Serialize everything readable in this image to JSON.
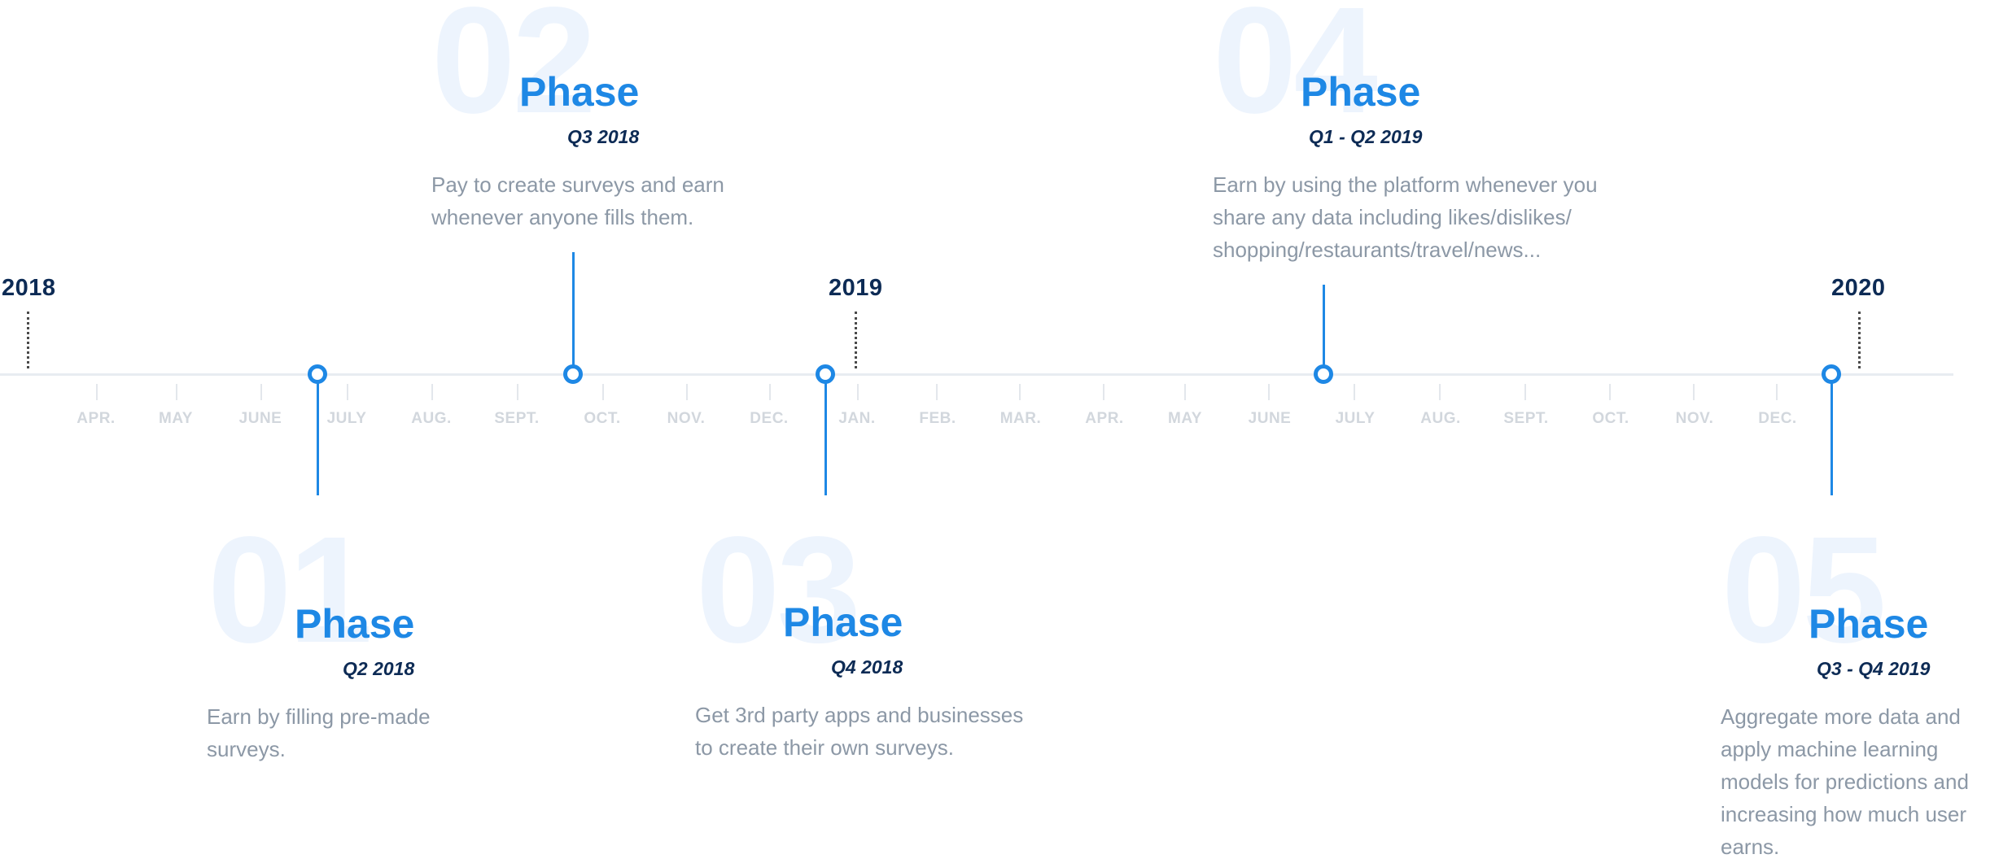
{
  "years": [
    {
      "label": "2018"
    },
    {
      "label": "2019"
    },
    {
      "label": "2020"
    }
  ],
  "months": [
    "APR.",
    "MAY",
    "JUNE",
    "JULY",
    "AUG.",
    "SEPT.",
    "OCT.",
    "NOV.",
    "DEC.",
    "JAN.",
    "FEB.",
    "MAR.",
    "APR.",
    "MAY",
    "JUNE",
    "JULY",
    "AUG.",
    "SEPT.",
    "OCT.",
    "NOV.",
    "DEC."
  ],
  "phases": [
    {
      "number": "01",
      "title": "Phase",
      "quarter": "Q2 2018",
      "description": "Earn by filling pre-made surveys."
    },
    {
      "number": "02",
      "title": "Phase",
      "quarter": "Q3 2018",
      "description": "Pay to create surveys and earn whenever anyone fills them."
    },
    {
      "number": "03",
      "title": "Phase",
      "quarter": "Q4 2018",
      "description": "Get 3rd party apps and businesses to create their own surveys."
    },
    {
      "number": "04",
      "title": "Phase",
      "quarter": "Q1 - Q2 2019",
      "description": "Earn by using the platform whenever you share any data including likes/dislikes/ shopping/restaurants/travel/news..."
    },
    {
      "number": "05",
      "title": "Phase",
      "quarter": "Q3 - Q4 2019",
      "description": "Aggregate more data and apply machine learning models for predictions and increasing how much user earns."
    }
  ],
  "colors": {
    "accent": "#1e88e5",
    "navy": "#0d2b55",
    "muted": "#8c98a6"
  }
}
